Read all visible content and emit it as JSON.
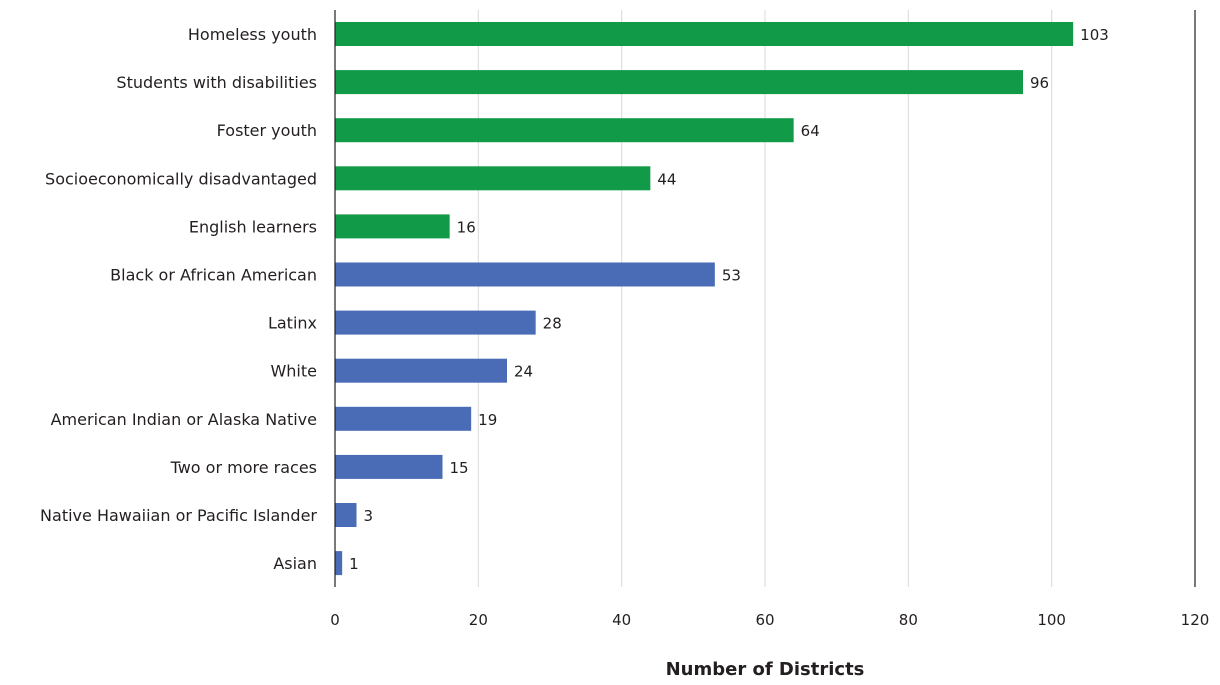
{
  "chart_data": {
    "type": "bar",
    "orientation": "horizontal",
    "title": "",
    "xlabel": "Number of Districts",
    "ylabel": "",
    "xlim": [
      0,
      120
    ],
    "xticks": [
      0,
      20,
      40,
      60,
      80,
      100,
      120
    ],
    "grid": "vertical",
    "colors": {
      "student_groups": "#119a48",
      "race_ethnicity": "#4a6bb5"
    },
    "categories": [
      "Homeless youth",
      "Students with disabilities",
      "Foster youth",
      "Socioeconomically disadvantaged",
      "English learners",
      "Black or African American",
      "Latinx",
      "White",
      "American Indian or Alaska Native",
      "Two or more races",
      "Native Hawaiian or Pacific Islander",
      "Asian"
    ],
    "values": [
      103,
      96,
      64,
      44,
      16,
      53,
      28,
      24,
      19,
      15,
      3,
      1
    ],
    "bar_color_keys": [
      "student_groups",
      "student_groups",
      "student_groups",
      "student_groups",
      "student_groups",
      "race_ethnicity",
      "race_ethnicity",
      "race_ethnicity",
      "race_ethnicity",
      "race_ethnicity",
      "race_ethnicity",
      "race_ethnicity"
    ]
  }
}
